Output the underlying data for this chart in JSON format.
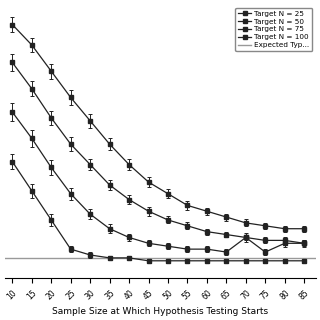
{
  "x": [
    10,
    15,
    20,
    25,
    30,
    35,
    40,
    45,
    50,
    55,
    60,
    65,
    70,
    75,
    80,
    85
  ],
  "series": {
    "N25": {
      "label": "Target N = 25",
      "marker": "s",
      "y": [
        0.38,
        0.28,
        0.18,
        0.08,
        0.06,
        0.05,
        0.05,
        0.04,
        0.04,
        0.04,
        0.04,
        0.04,
        0.04,
        0.04,
        0.04,
        0.04
      ],
      "yerr": [
        0.025,
        0.025,
        0.02,
        0.01,
        0.01,
        0.008,
        0.008,
        0.006,
        0.006,
        0.006,
        0.006,
        0.006,
        0.006,
        0.006,
        0.006,
        0.006
      ]
    },
    "N50": {
      "label": "Target N = 50",
      "marker": "s",
      "y": [
        0.55,
        0.46,
        0.36,
        0.27,
        0.2,
        0.15,
        0.12,
        0.1,
        0.09,
        0.08,
        0.08,
        0.07,
        0.12,
        0.07,
        0.1,
        0.1
      ],
      "yerr": [
        0.03,
        0.03,
        0.025,
        0.02,
        0.018,
        0.015,
        0.012,
        0.01,
        0.01,
        0.01,
        0.01,
        0.01,
        0.015,
        0.01,
        0.012,
        0.012
      ]
    },
    "N75": {
      "label": "Target N = 75",
      "marker": "s",
      "y": [
        0.72,
        0.63,
        0.53,
        0.44,
        0.37,
        0.3,
        0.25,
        0.21,
        0.18,
        0.16,
        0.14,
        0.13,
        0.12,
        0.11,
        0.11,
        0.1
      ],
      "yerr": [
        0.03,
        0.025,
        0.025,
        0.025,
        0.02,
        0.018,
        0.015,
        0.015,
        0.012,
        0.012,
        0.01,
        0.01,
        0.01,
        0.01,
        0.01,
        0.01
      ]
    },
    "N100": {
      "label": "Target N = 100",
      "marker": "s",
      "y": [
        0.85,
        0.78,
        0.69,
        0.6,
        0.52,
        0.44,
        0.37,
        0.31,
        0.27,
        0.23,
        0.21,
        0.19,
        0.17,
        0.16,
        0.15,
        0.15
      ],
      "yerr": [
        0.025,
        0.025,
        0.025,
        0.025,
        0.025,
        0.02,
        0.02,
        0.018,
        0.015,
        0.015,
        0.012,
        0.012,
        0.012,
        0.01,
        0.01,
        0.01
      ]
    }
  },
  "expected_line_y": 0.05,
  "xlabel": "Sample Size at Which Hypothesis Testing Starts",
  "xlim": [
    8,
    88
  ],
  "ylim": [
    -0.02,
    0.92
  ],
  "xticks": [
    10,
    15,
    20,
    25,
    30,
    35,
    40,
    45,
    50,
    55,
    60,
    65,
    70,
    75,
    80,
    85
  ],
  "color": "#222222",
  "line_color": "#999999",
  "background_color": "#ffffff",
  "legend_fontsize": 5.2,
  "axis_fontsize": 6.5,
  "tick_fontsize": 5.5
}
